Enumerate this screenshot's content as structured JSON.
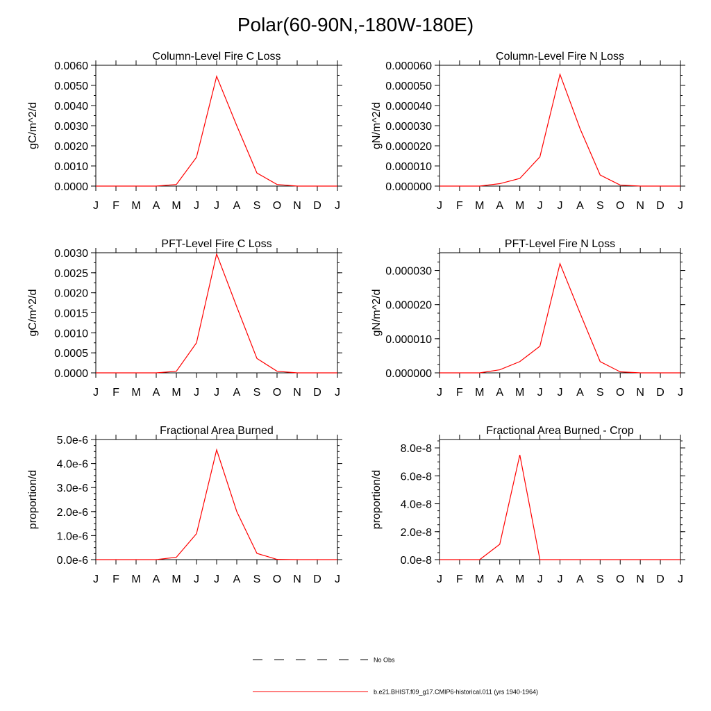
{
  "page": {
    "title": "Polar(60-90N,-180W-180E)"
  },
  "months": [
    "J",
    "F",
    "M",
    "A",
    "M",
    "J",
    "J",
    "A",
    "S",
    "O",
    "N",
    "D",
    "J"
  ],
  "chart_data": [
    {
      "type": "line",
      "title": "Column-Level Fire C Loss",
      "ylabel": "gC/m^2/d",
      "ylim": [
        0,
        0.006
      ],
      "yticks": [
        0,
        0.001,
        0.002,
        0.003,
        0.004,
        0.005,
        0.006
      ],
      "yticklabels": [
        "0.0000",
        "0.0010",
        "0.0020",
        "0.0030",
        "0.0040",
        "0.0050",
        "0.0060"
      ],
      "minor_step": 0.0005,
      "series": [
        {
          "values": [
            0,
            0,
            0,
            0,
            8e-05,
            0.00143,
            0.00545,
            0.003,
            0.00065,
            8e-05,
            0,
            0,
            0
          ],
          "color": "#ff0000"
        }
      ]
    },
    {
      "type": "line",
      "title": "Column-Level Fire N Loss",
      "ylabel": "gN/m^2/d",
      "ylim": [
        0,
        6e-05
      ],
      "yticks": [
        0,
        1e-05,
        2e-05,
        3e-05,
        4e-05,
        5e-05,
        6e-05
      ],
      "yticklabels": [
        "0.000000",
        "0.000010",
        "0.000020",
        "0.000030",
        "0.000040",
        "0.000050",
        "0.000060"
      ],
      "minor_step": 5e-06,
      "series": [
        {
          "values": [
            0,
            0,
            0,
            1.2e-06,
            3.8e-06,
            1.45e-05,
            5.55e-05,
            2.85e-05,
            5.5e-06,
            5e-07,
            0,
            0,
            0
          ],
          "color": "#ff0000"
        }
      ]
    },
    {
      "type": "line",
      "title": "PFT-Level Fire C Loss",
      "ylabel": "gC/m^2/d",
      "ylim": [
        0,
        0.003
      ],
      "yticks": [
        0,
        0.0005,
        0.001,
        0.0015,
        0.002,
        0.0025,
        0.003
      ],
      "yticklabels": [
        "0.0000",
        "0.0005",
        "0.0010",
        "0.0015",
        "0.0020",
        "0.0025",
        "0.0030"
      ],
      "minor_step": 0.00025,
      "series": [
        {
          "values": [
            0,
            0,
            0,
            0,
            4e-05,
            0.00075,
            0.00297,
            0.00165,
            0.00036,
            4e-05,
            0,
            0,
            0
          ],
          "color": "#ff0000"
        }
      ]
    },
    {
      "type": "line",
      "title": "PFT-Level Fire N Loss",
      "ylabel": "gN/m^2/d",
      "ylim": [
        0,
        3.52e-05
      ],
      "yticks": [
        0,
        1e-05,
        2e-05,
        3e-05
      ],
      "yticklabels": [
        "0.000000",
        "0.000010",
        "0.000020",
        "0.000030"
      ],
      "minor_step": 2.5e-06,
      "series": [
        {
          "values": [
            0,
            0,
            0,
            9e-07,
            3.3e-06,
            7.8e-06,
            3.2e-05,
            1.75e-05,
            3.3e-06,
            3e-07,
            0,
            0,
            0
          ],
          "color": "#ff0000"
        }
      ]
    },
    {
      "type": "line",
      "title": "Fractional Area Burned",
      "ylabel": "proportion/d",
      "ylim": [
        0,
        5e-06
      ],
      "yticks": [
        0,
        1e-06,
        2e-06,
        3e-06,
        4e-06,
        5e-06
      ],
      "yticklabels": [
        "0.0e-6",
        "1.0e-6",
        "2.0e-6",
        "3.0e-6",
        "4.0e-6",
        "5.0e-6"
      ],
      "minor_step": 2.5e-07,
      "series": [
        {
          "values": [
            0,
            0,
            0,
            0,
            1e-07,
            1.08e-06,
            4.57e-06,
            2e-06,
            2.6e-07,
            1e-08,
            0,
            0,
            0
          ],
          "color": "#ff0000"
        }
      ]
    },
    {
      "type": "line",
      "title": "Fractional Area Burned - Crop",
      "ylabel": "proportion/d",
      "ylim": [
        0,
        8.6e-08
      ],
      "yticks": [
        0,
        2e-08,
        4e-08,
        6e-08,
        8e-08
      ],
      "yticklabels": [
        "0.0e-8",
        "2.0e-8",
        "4.0e-8",
        "6.0e-8",
        "8.0e-8"
      ],
      "minor_step": 5e-09,
      "series": [
        {
          "values": [
            0,
            0,
            0,
            1.1e-08,
            7.5e-08,
            0,
            0,
            0,
            0,
            0,
            0,
            0,
            0
          ],
          "color": "#ff0000"
        }
      ]
    }
  ],
  "legend": [
    {
      "label": "No Obs",
      "style": "dashed",
      "color": "#000000"
    },
    {
      "label": "b.e21.BHIST.f09_g17.CMIP6-historical.011 (yrs 1940-1964)",
      "style": "solid",
      "color": "#ff0000"
    }
  ]
}
